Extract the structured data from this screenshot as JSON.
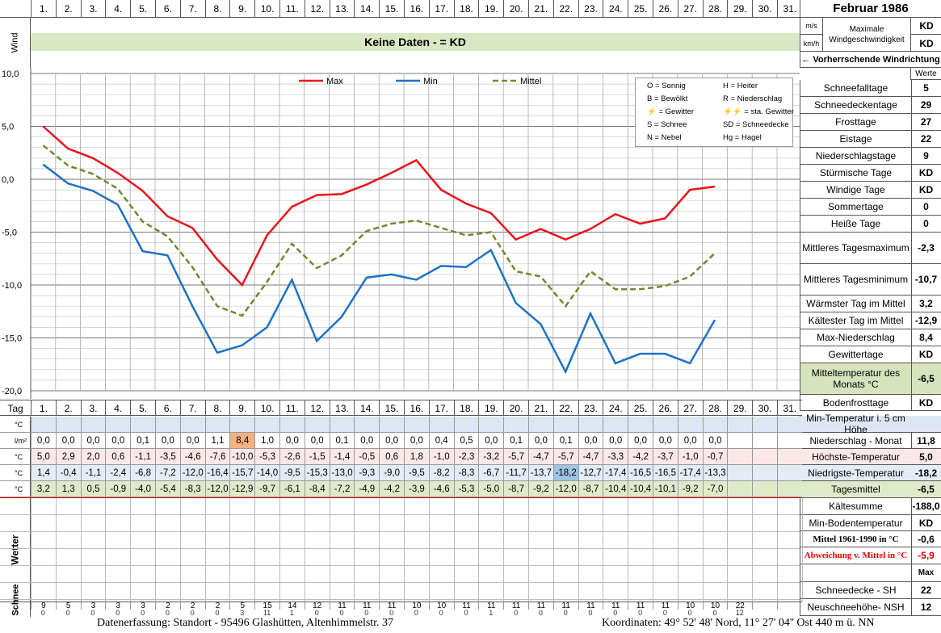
{
  "header": {
    "month_title": "Februar 1986",
    "wind_label": "Wind",
    "unit_ms": "m/s",
    "unit_kmh": "km/h",
    "max_wind_label": "Maximale Windgeschwindigkeit",
    "max_wind_ms": "KD",
    "max_wind_kmh": "KD",
    "no_data_text": "Keine Daten -  = KD",
    "wind_direction_label": "← Vorherrschende Windrichtung",
    "werte_label": "Werte"
  },
  "days": [
    "1.",
    "2.",
    "3.",
    "4.",
    "5.",
    "6.",
    "7.",
    "8.",
    "9.",
    "10.",
    "11.",
    "12.",
    "13.",
    "14.",
    "15.",
    "16.",
    "17.",
    "18.",
    "19.",
    "20.",
    "21.",
    "22.",
    "23.",
    "24.",
    "25.",
    "26.",
    "27.",
    "28.",
    "29.",
    "30.",
    "31."
  ],
  "legend_symbols": [
    "O = Sonnig",
    "H = Heiter",
    "B = Bewölkt",
    "R = Niederschlag",
    "⚡ = Gewitter",
    "⚡⚡ = sta. Gewitter",
    "S = Schnee",
    "SD = Schneedecke",
    "N = Nebel",
    "Hg = Hagel"
  ],
  "chart_data": {
    "type": "line",
    "x": [
      1,
      2,
      3,
      4,
      5,
      6,
      7,
      8,
      9,
      10,
      11,
      12,
      13,
      14,
      15,
      16,
      17,
      18,
      19,
      20,
      21,
      22,
      23,
      24,
      25,
      26,
      27,
      28
    ],
    "series": [
      {
        "name": "Max",
        "color": "#e8141c",
        "values": [
          5.0,
          2.9,
          2.0,
          0.6,
          -1.1,
          -3.5,
          -4.6,
          -7.6,
          -10.0,
          -5.3,
          -2.6,
          -1.5,
          -1.4,
          -0.5,
          0.6,
          1.8,
          -1.0,
          -2.3,
          -3.2,
          -5.7,
          -4.7,
          -5.7,
          -4.7,
          -3.3,
          -4.2,
          -3.7,
          -1.0,
          -0.7
        ]
      },
      {
        "name": "Min",
        "color": "#1f72c4",
        "values": [
          1.4,
          -0.4,
          -1.1,
          -2.4,
          -6.8,
          -7.2,
          -12.0,
          -16.4,
          -15.7,
          -14.0,
          -9.5,
          -15.3,
          -13.0,
          -9.3,
          -9.0,
          -9.5,
          -8.2,
          -8.3,
          -6.7,
          -11.7,
          -13.7,
          -18.2,
          -12.7,
          -17.4,
          -16.5,
          -16.5,
          -17.4,
          -13.3
        ]
      },
      {
        "name": "Mittel",
        "color": "#6f8a2e",
        "values": [
          3.2,
          1.3,
          0.5,
          -0.9,
          -4.0,
          -5.4,
          -8.3,
          -12.0,
          -12.9,
          -9.7,
          -6.1,
          -8.4,
          -7.2,
          -4.9,
          -4.2,
          -3.9,
          -4.6,
          -5.3,
          -5.0,
          -8.7,
          -9.2,
          -12.0,
          -8.7,
          -10.4,
          -10.4,
          -10.1,
          -9.2,
          -7.0
        ]
      }
    ],
    "ylim": [
      -20,
      10
    ],
    "yticks": [
      "10,0",
      "5,0",
      "0,0",
      "-5,0",
      "-10,0",
      "-15,0",
      "-20,0"
    ]
  },
  "table": {
    "tag_label": "Tag",
    "rows": [
      {
        "unit": "°C",
        "values": [
          "",
          "",
          "",
          "",
          "",
          "",
          "",
          "",
          "",
          "",
          "",
          "",
          "",
          "",
          "",
          "",
          "",
          "",
          "",
          "",
          "",
          "",
          "",
          "",
          "",
          "",
          "",
          "",
          "",
          "",
          ""
        ]
      },
      {
        "unit": "l/m²",
        "values": [
          "0,0",
          "0,0",
          "0,0",
          "0,0",
          "0,1",
          "0,0",
          "0,0",
          "1,1",
          "8,4",
          "1,0",
          "0,0",
          "0,0",
          "0,1",
          "0,0",
          "0,0",
          "0,0",
          "0,4",
          "0,5",
          "0,0",
          "0,1",
          "0,0",
          "0,1",
          "0,0",
          "0,0",
          "0,0",
          "0,0",
          "0,0",
          "0,0",
          "",
          "",
          ""
        ]
      },
      {
        "unit": "°C",
        "values": [
          "5,0",
          "2,9",
          "2,0",
          "0,6",
          "-1,1",
          "-3,5",
          "-4,6",
          "-7,6",
          "-10,0",
          "-5,3",
          "-2,6",
          "-1,5",
          "-1,4",
          "-0,5",
          "0,6",
          "1,8",
          "-1,0",
          "-2,3",
          "-3,2",
          "-5,7",
          "-4,7",
          "-5,7",
          "-4,7",
          "-3,3",
          "-4,2",
          "-3,7",
          "-1,0",
          "-0,7",
          "",
          "",
          ""
        ]
      },
      {
        "unit": "°C",
        "values": [
          "1,4",
          "-0,4",
          "-1,1",
          "-2,4",
          "-6,8",
          "-7,2",
          "-12,0",
          "-16,4",
          "-15,7",
          "-14,0",
          "-9,5",
          "-15,3",
          "-13,0",
          "-9,3",
          "-9,0",
          "-9,5",
          "-8,2",
          "-8,3",
          "-6,7",
          "-11,7",
          "-13,7",
          "-18,2",
          "-12,7",
          "-17,4",
          "-16,5",
          "-16,5",
          "-17,4",
          "-13,3",
          "",
          "",
          ""
        ]
      },
      {
        "unit": "°C",
        "values": [
          "3,2",
          "1,3",
          "0,5",
          "-0,9",
          "-4,0",
          "-5,4",
          "-8,3",
          "-12,0",
          "-12,9",
          "-9,7",
          "-6,1",
          "-8,4",
          "-7,2",
          "-4,9",
          "-4,2",
          "-3,9",
          "-4,6",
          "-5,3",
          "-5,0",
          "-8,7",
          "-9,2",
          "-12,0",
          "-8,7",
          "-10,4",
          "-10,4",
          "-10,1",
          "-9,2",
          "-7,0",
          "",
          "",
          ""
        ]
      }
    ],
    "wetter_label": "Wetter",
    "schnee_label": "Schnee",
    "snow_depth": [
      "9",
      "5",
      "3",
      "3",
      "3",
      "2",
      "2",
      "2",
      "5",
      "15",
      "14",
      "12",
      "11",
      "11",
      "11",
      "10",
      "10",
      "11",
      "11",
      "11",
      "11",
      "11",
      "11",
      "11",
      "11",
      "11",
      "10",
      "10",
      "22",
      "",
      ""
    ],
    "new_snow": [
      "0",
      "0",
      "0",
      "0",
      "0",
      "0",
      "0",
      "0",
      "3",
      "11",
      "1",
      "0",
      "0",
      "0",
      "0",
      "0",
      "0",
      "0",
      "1",
      "0",
      "0",
      "0",
      "0",
      "0",
      "0",
      "0",
      "0",
      "0",
      "12",
      "",
      ""
    ]
  },
  "stats": [
    {
      "label": "Schneefalltage",
      "value": "5"
    },
    {
      "label": "Schneedeckentage",
      "value": "29"
    },
    {
      "label": "Frosttage",
      "value": "27"
    },
    {
      "label": "Eistage",
      "value": "22"
    },
    {
      "label": "Niederschlagstage",
      "value": "9"
    },
    {
      "label": "Stürmische Tage",
      "value": "KD"
    },
    {
      "label": "Windige Tage",
      "value": "KD"
    },
    {
      "label": "Sommertage",
      "value": "0"
    },
    {
      "label": "Heiße Tage",
      "value": "0"
    },
    {
      "label": "Mittleres Tagesmaximum",
      "value": "-2,3"
    },
    {
      "label": "Mittleres Tagesminimum",
      "value": "-10,7"
    },
    {
      "label": "Wärmster Tag im Mittel",
      "value": "3,2"
    },
    {
      "label": "Kältester Tag im Mittel",
      "value": "-12,9"
    },
    {
      "label": "Max-Niederschlag",
      "value": "8,4"
    },
    {
      "label": "Gewittertage",
      "value": "KD"
    },
    {
      "label": "Mitteltemperatur des Monats °C",
      "value": "-6,5"
    },
    {
      "label": "Bodenfrosttage",
      "value": "KD"
    }
  ],
  "stats2": [
    {
      "label": "Min-Temperatur i. 5 cm Höhe",
      "value": ""
    },
    {
      "label": "Niederschlag - Monat",
      "value": "11,8"
    },
    {
      "label": "Höchste-Temperatur",
      "value": "5,0"
    },
    {
      "label": "Niedrigste-Temperatur",
      "value": "-18,2"
    },
    {
      "label": "Tagesmittel",
      "value": "-6,5"
    },
    {
      "label": "Kältesumme",
      "value": "-188,0"
    },
    {
      "label": "Min-Bodentemperatur",
      "value": "KD"
    },
    {
      "label": "Mittel 1961-1990 in °C",
      "value": "-0,6"
    },
    {
      "label": "Abweichung v. Mittel in °C",
      "value": "-5,9"
    },
    {
      "label": "",
      "value": "Max"
    },
    {
      "label": "Schneedecke -  SH",
      "value": "22"
    },
    {
      "label": "Neuschneehöhe- NSH",
      "value": "12"
    }
  ],
  "footer": {
    "left": "Datenerfassung:  Standort -  95496  Glashütten, Altenhimmelstr. 37",
    "right": "Koordinaten:  49° 52' 48' Nord,  11° 27' 04'' Ost   440 m ü. NN"
  }
}
